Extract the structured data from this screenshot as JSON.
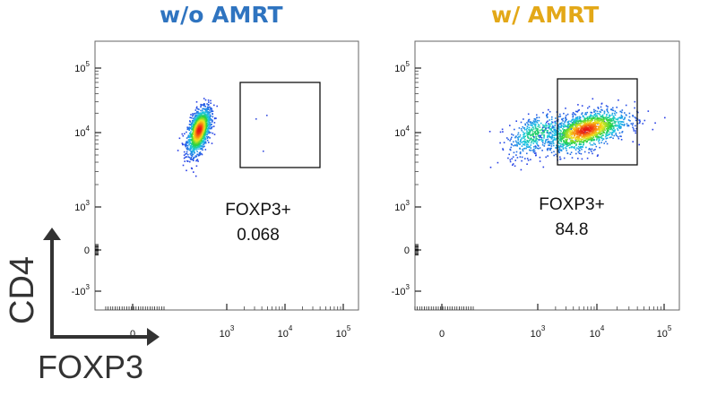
{
  "colors": {
    "title_left": "#2f74c0",
    "title_right": "#e3a818",
    "axis": "#333333",
    "gate": "#111111"
  },
  "chart_data": [
    {
      "type": "scatter",
      "title": "w/o AMRT",
      "xlabel": "FOXP3",
      "ylabel": "CD4",
      "x_scale": "biexponential",
      "y_scale": "biexponential",
      "xticks": [
        "0",
        "10^3",
        "10^4",
        "10^5"
      ],
      "yticks": [
        "10^5",
        "10^4",
        "10^3",
        "0",
        "-10^3"
      ],
      "populations": [
        {
          "name": "main",
          "x_center_log": 2.1,
          "y_center_log": 4.05,
          "spread": "tight",
          "density": "high"
        }
      ],
      "gate": {
        "label": "FOXP3+",
        "value": "0.068",
        "x_range": [
          "10^3.3",
          "10^4.7"
        ],
        "y_range": [
          "10^3.65",
          "10^4.85"
        ]
      }
    },
    {
      "type": "scatter",
      "title": "w/ AMRT",
      "xlabel": "FOXP3",
      "ylabel": "CD4",
      "x_scale": "biexponential",
      "y_scale": "biexponential",
      "xticks": [
        "0",
        "10^3",
        "10^4",
        "10^5"
      ],
      "yticks": [
        "10^5",
        "10^4",
        "10^3",
        "0",
        "-10^3"
      ],
      "populations": [
        {
          "name": "FOXP3-",
          "x_center_log": 2.9,
          "y_center_log": 4.0,
          "spread": "wide",
          "density": "low"
        },
        {
          "name": "FOXP3+",
          "x_center_log": 3.8,
          "y_center_log": 4.05,
          "spread": "medium",
          "density": "high"
        }
      ],
      "gate": {
        "label": "FOXP3+",
        "value": "84.8",
        "x_range": [
          "10^3.3",
          "10^4.5"
        ],
        "y_range": [
          "10^3.65",
          "10^4.85"
        ]
      }
    }
  ],
  "axis_labels": {
    "y": "CD4",
    "x": "FOXP3"
  }
}
